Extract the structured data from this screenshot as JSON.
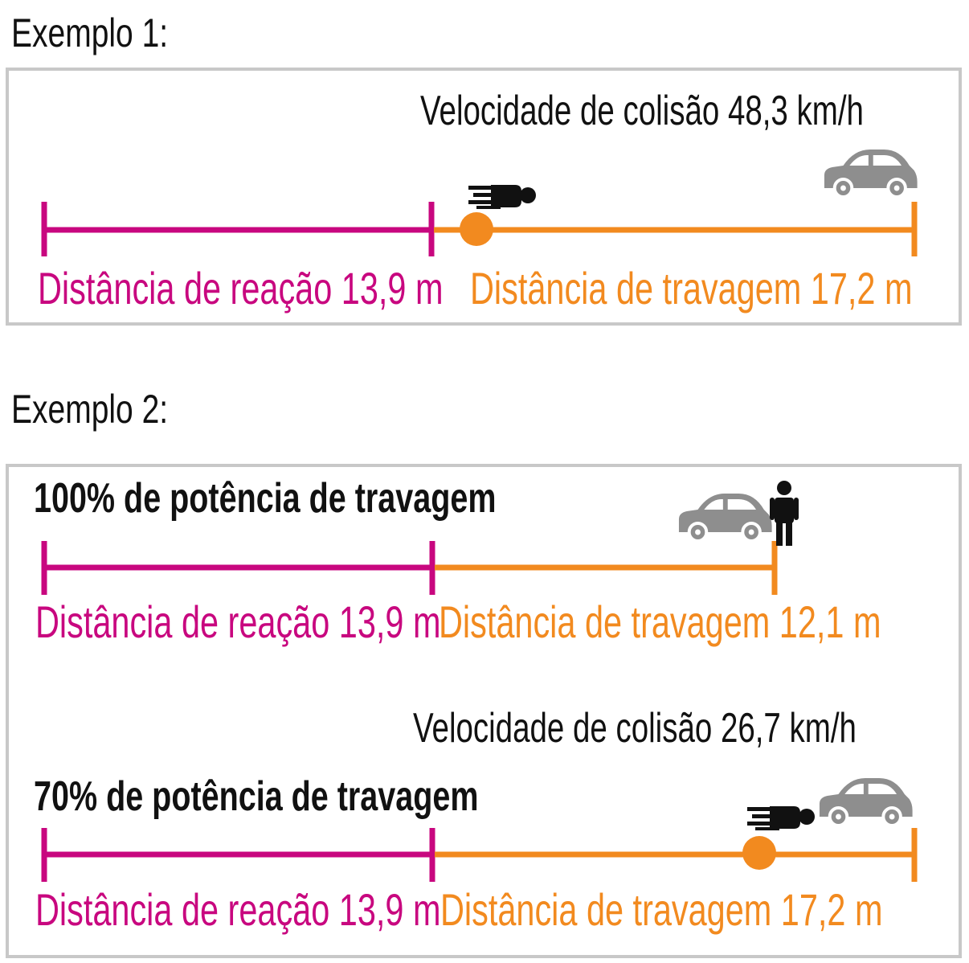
{
  "colors": {
    "reaction": "#c8077f",
    "braking": "#f28a1f",
    "car": "#8e8e8e",
    "person": "#111111",
    "frame": "#c8c8c8"
  },
  "example1": {
    "heading": "Exemplo 1:",
    "speed_label": "Velocidade de colisão 48,3 km/h",
    "reaction_label": "Distância de reação 13,9 m",
    "braking_label": "Distância de travagem 17,2 m",
    "reaction_m": 13.9,
    "braking_m": 17.2,
    "icons": [
      "car-icon",
      "pedestrian-hit-icon",
      "impact-point-icon"
    ]
  },
  "example2": {
    "heading": "Exemplo 2:",
    "case_full": {
      "power_label": "100% de potência de travagem",
      "reaction_label": "Distância de reação 13,9 m",
      "braking_label": "Distância de travagem 12,1 m",
      "reaction_m": 13.9,
      "braking_m": 12.1,
      "icons": [
        "car-icon",
        "pedestrian-standing-icon"
      ]
    },
    "speed_label": "Velocidade de colisão 26,7 km/h",
    "case_reduced": {
      "power_label": "70% de potência de travagem",
      "reaction_label": "Distância de reação 13,9 m",
      "braking_label": "Distância de travagem 17,2 m",
      "reaction_m": 13.9,
      "braking_m": 17.2,
      "icons": [
        "car-icon",
        "pedestrian-hit-icon",
        "impact-point-icon"
      ]
    }
  }
}
